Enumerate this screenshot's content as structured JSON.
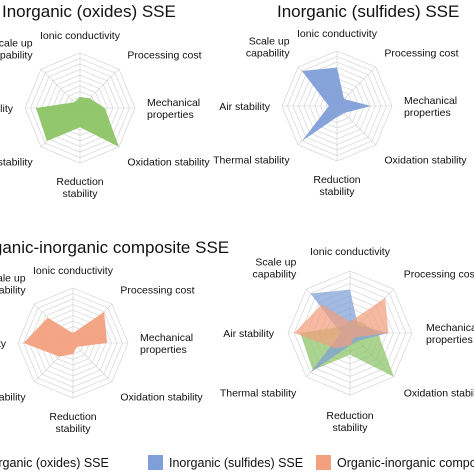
{
  "axes": [
    "Ionic conductivity",
    "Processing cost",
    "Mechanical properties",
    "Oxidation stability",
    "Reduction stability",
    "Thermal stability",
    "Air stability",
    "Scale up capability"
  ],
  "colors": {
    "oxides": "#8cc466",
    "sulfides": "#7f9fd8",
    "composite": "#f2a07e"
  },
  "chart_data": [
    {
      "type": "radar",
      "title": "Inorganic (oxides) SSE",
      "axes": [
        "Ionic conductivity",
        "Processing cost",
        "Mechanical properties",
        "Oxidation stability",
        "Reduction stability",
        "Thermal stability",
        "Air stability",
        "Scale up capability"
      ],
      "series": [
        {
          "values": [
            0.2,
            0.25,
            0.45,
            1.0,
            0.35,
            0.85,
            0.8,
            0.15
          ]
        }
      ]
    },
    {
      "type": "radar",
      "title": "Inorganic (sulfides) SSE",
      "axes": [
        "Ionic conductivity",
        "Processing cost",
        "Mechanical properties",
        "Oxidation stability",
        "Reduction stability",
        "Thermal stability",
        "Air stability",
        "Scale up capability"
      ],
      "series": [
        {
          "values": [
            0.7,
            0.18,
            0.62,
            0.18,
            0.2,
            0.9,
            0.15,
            0.9
          ]
        }
      ]
    },
    {
      "type": "radar",
      "title": "Organic-inorganic composite SSE",
      "axes": [
        "Ionic conductivity",
        "Processing cost",
        "Mechanical properties",
        "Oxidation stability",
        "Reduction stability",
        "Thermal stability",
        "Air stability",
        "Scale up capability"
      ],
      "series": [
        {
          "values": [
            0.18,
            0.8,
            0.62,
            0.1,
            0.2,
            0.35,
            0.9,
            0.65
          ]
        }
      ]
    },
    {
      "type": "radar",
      "title": "",
      "axes": [
        "Ionic conductivity",
        "Processing cost",
        "Mechanical properties",
        "Oxidation stability",
        "Reduction stability",
        "Thermal stability",
        "Air stability",
        "Scale up capability"
      ],
      "series": [
        {
          "name": "Inorganic (oxides) SSE",
          "values": [
            0.2,
            0.25,
            0.45,
            1.0,
            0.35,
            0.85,
            0.8,
            0.15
          ]
        },
        {
          "name": "Inorganic (sulfides) SSE",
          "values": [
            0.7,
            0.18,
            0.62,
            0.18,
            0.2,
            0.9,
            0.15,
            0.9
          ]
        },
        {
          "name": "Organic-inorganic composite SSE",
          "values": [
            0.18,
            0.8,
            0.62,
            0.1,
            0.2,
            0.35,
            0.9,
            0.65
          ]
        }
      ]
    }
  ],
  "legend": [
    "Inorganic (oxides) SSE",
    "Inorganic (sulfides) SSE",
    "Organic-inorganic composite SSE"
  ]
}
